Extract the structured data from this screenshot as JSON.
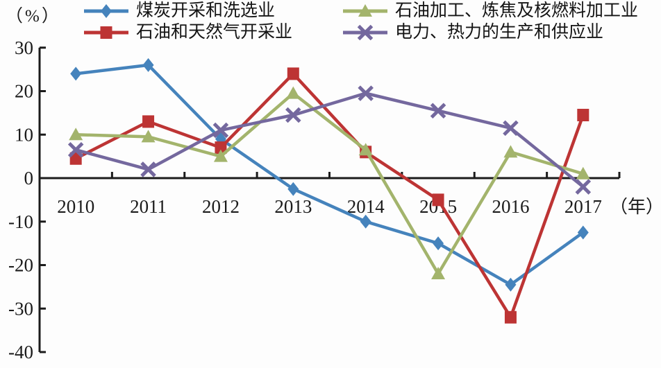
{
  "chart_data": {
    "type": "line",
    "title": "",
    "y_unit": "（%）",
    "x_unit": "（年）",
    "categories": [
      "2010",
      "2011",
      "2012",
      "2013",
      "2014",
      "2015",
      "2016",
      "2017"
    ],
    "yticks": [
      30,
      20,
      10,
      0,
      -10,
      -20,
      -30,
      -40
    ],
    "ylim": [
      -40,
      30
    ],
    "grid": false,
    "legend_position": "top",
    "axis_color": "#1b1b1b",
    "series": [
      {
        "name": "煤炭开采和洗选业",
        "color": "#4583bc",
        "marker": "diamond",
        "values": [
          24,
          26,
          9,
          -2.5,
          -10,
          -15,
          -24.5,
          -12.5
        ]
      },
      {
        "name": "石油和天然气开采业",
        "color": "#bd3434",
        "marker": "square",
        "values": [
          4.5,
          13,
          7,
          24,
          6,
          -5,
          -32,
          14.5
        ]
      },
      {
        "name": "石油加工、炼焦及核燃料加工业",
        "color": "#a3b46c",
        "marker": "triangle",
        "values": [
          10,
          9.5,
          5,
          19.5,
          6.5,
          -22,
          6,
          1
        ]
      },
      {
        "name": "电力、热力的生产和供应业",
        "color": "#74689e",
        "marker": "x",
        "values": [
          6.5,
          2,
          11,
          14.5,
          19.5,
          15.5,
          11.5,
          -2
        ]
      }
    ]
  }
}
